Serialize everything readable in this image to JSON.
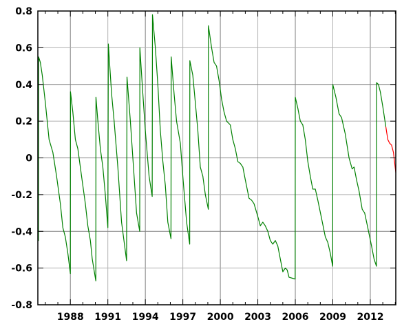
{
  "chart_data": {
    "type": "line",
    "title": "",
    "xlabel": "",
    "ylabel": "",
    "xlim": [
      1985.4,
      2014.04
    ],
    "ylim": [
      -0.8,
      0.8
    ],
    "grid": true,
    "xticks": [
      1988,
      1991,
      1994,
      1997,
      2000,
      2003,
      2006,
      2009,
      2012
    ],
    "xtick_labels": [
      "1988",
      "1991",
      "1994",
      "1997",
      "2000",
      "2003",
      "2006",
      "2009",
      "2012"
    ],
    "yticks": [
      0.8,
      0.6,
      0.4,
      0.2,
      0,
      -0.2,
      -0.4,
      -0.6,
      -0.8
    ],
    "ytick_labels": [
      "0.8",
      "0.6",
      "0.4",
      "0.2",
      "0",
      "-0.2",
      "-0.4",
      "-0.6",
      "-0.8"
    ],
    "series": [
      {
        "color": "#008000",
        "points": [
          [
            1985.4,
            -0.38
          ],
          [
            1985.45,
            -0.45
          ],
          [
            1985.46,
            0.55
          ],
          [
            1985.6,
            0.52
          ],
          [
            1985.75,
            0.45
          ],
          [
            1986.0,
            0.3
          ],
          [
            1986.3,
            0.1
          ],
          [
            1986.6,
            0.03
          ],
          [
            1986.9,
            -0.1
          ],
          [
            1987.2,
            -0.25
          ],
          [
            1987.4,
            -0.38
          ],
          [
            1987.6,
            -0.43
          ],
          [
            1987.8,
            -0.52
          ],
          [
            1988.0,
            -0.63
          ],
          [
            1988.01,
            0.36
          ],
          [
            1988.2,
            0.25
          ],
          [
            1988.4,
            0.1
          ],
          [
            1988.6,
            0.05
          ],
          [
            1988.9,
            -0.1
          ],
          [
            1989.2,
            -0.25
          ],
          [
            1989.4,
            -0.37
          ],
          [
            1989.6,
            -0.45
          ],
          [
            1989.75,
            -0.55
          ],
          [
            1990.04,
            -0.67
          ],
          [
            1990.05,
            0.33
          ],
          [
            1990.2,
            0.2
          ],
          [
            1990.4,
            0.05
          ],
          [
            1990.6,
            -0.05
          ],
          [
            1990.8,
            -0.2
          ],
          [
            1991.0,
            -0.38
          ],
          [
            1991.04,
            0.62
          ],
          [
            1991.3,
            0.35
          ],
          [
            1991.5,
            0.2
          ],
          [
            1991.8,
            -0.05
          ],
          [
            1992.1,
            -0.35
          ],
          [
            1992.5,
            -0.56
          ],
          [
            1992.53,
            0.44
          ],
          [
            1992.8,
            0.2
          ],
          [
            1993.0,
            0.0
          ],
          [
            1993.3,
            -0.3
          ],
          [
            1993.55,
            -0.4
          ],
          [
            1993.56,
            0.6
          ],
          [
            1993.8,
            0.35
          ],
          [
            1994.0,
            0.15
          ],
          [
            1994.3,
            -0.1
          ],
          [
            1994.55,
            -0.21
          ],
          [
            1994.57,
            0.78
          ],
          [
            1994.8,
            0.6
          ],
          [
            1995.0,
            0.4
          ],
          [
            1995.2,
            0.15
          ],
          [
            1995.4,
            -0.02
          ],
          [
            1995.6,
            -0.15
          ],
          [
            1995.8,
            -0.35
          ],
          [
            1996.05,
            -0.44
          ],
          [
            1996.07,
            0.55
          ],
          [
            1996.3,
            0.35
          ],
          [
            1996.5,
            0.2
          ],
          [
            1996.8,
            0.08
          ],
          [
            1997.0,
            -0.1
          ],
          [
            1997.3,
            -0.35
          ],
          [
            1997.55,
            -0.47
          ],
          [
            1997.56,
            0.53
          ],
          [
            1997.8,
            0.45
          ],
          [
            1998.0,
            0.3
          ],
          [
            1998.2,
            0.15
          ],
          [
            1998.4,
            -0.05
          ],
          [
            1998.6,
            -0.1
          ],
          [
            1998.8,
            -0.2
          ],
          [
            1999.04,
            -0.28
          ],
          [
            1999.05,
            0.72
          ],
          [
            1999.3,
            0.6
          ],
          [
            1999.5,
            0.52
          ],
          [
            1999.7,
            0.5
          ],
          [
            1999.9,
            0.42
          ],
          [
            2000.1,
            0.32
          ],
          [
            2000.3,
            0.25
          ],
          [
            2000.5,
            0.2
          ],
          [
            2000.8,
            0.18
          ],
          [
            2001.0,
            0.1
          ],
          [
            2001.2,
            0.05
          ],
          [
            2001.4,
            -0.02
          ],
          [
            2001.6,
            -0.03
          ],
          [
            2001.8,
            -0.05
          ],
          [
            2002.0,
            -0.12
          ],
          [
            2002.3,
            -0.22
          ],
          [
            2002.5,
            -0.23
          ],
          [
            2002.7,
            -0.25
          ],
          [
            2003.0,
            -0.32
          ],
          [
            2003.2,
            -0.37
          ],
          [
            2003.4,
            -0.35
          ],
          [
            2003.6,
            -0.37
          ],
          [
            2003.8,
            -0.4
          ],
          [
            2004.0,
            -0.45
          ],
          [
            2004.2,
            -0.47
          ],
          [
            2004.4,
            -0.45
          ],
          [
            2004.6,
            -0.48
          ],
          [
            2004.8,
            -0.55
          ],
          [
            2005.0,
            -0.62
          ],
          [
            2005.2,
            -0.6
          ],
          [
            2005.35,
            -0.61
          ],
          [
            2005.5,
            -0.65
          ],
          [
            2005.99,
            -0.66
          ],
          [
            2006.0,
            0.33
          ],
          [
            2006.2,
            0.27
          ],
          [
            2006.4,
            0.2
          ],
          [
            2006.6,
            0.18
          ],
          [
            2006.8,
            0.1
          ],
          [
            2007.0,
            -0.02
          ],
          [
            2007.2,
            -0.1
          ],
          [
            2007.4,
            -0.17
          ],
          [
            2007.6,
            -0.17
          ],
          [
            2007.8,
            -0.23
          ],
          [
            2008.1,
            -0.33
          ],
          [
            2008.4,
            -0.43
          ],
          [
            2008.6,
            -0.46
          ],
          [
            2008.8,
            -0.52
          ],
          [
            2008.99,
            -0.59
          ],
          [
            2009.0,
            0.4
          ],
          [
            2009.25,
            0.33
          ],
          [
            2009.5,
            0.24
          ],
          [
            2009.7,
            0.22
          ],
          [
            2010.0,
            0.13
          ],
          [
            2010.3,
            0.0
          ],
          [
            2010.55,
            -0.06
          ],
          [
            2010.7,
            -0.05
          ],
          [
            2010.9,
            -0.12
          ],
          [
            2011.1,
            -0.18
          ],
          [
            2011.35,
            -0.28
          ],
          [
            2011.55,
            -0.3
          ],
          [
            2011.8,
            -0.38
          ],
          [
            2012.1,
            -0.48
          ],
          [
            2012.3,
            -0.55
          ],
          [
            2012.49,
            -0.59
          ],
          [
            2012.5,
            0.41
          ],
          [
            2012.65,
            0.4
          ],
          [
            2012.8,
            0.36
          ],
          [
            2013.0,
            0.28
          ],
          [
            2013.24,
            0.17
          ]
        ]
      },
      {
        "color": "#ff0000",
        "points": [
          [
            2013.24,
            0.17
          ],
          [
            2013.4,
            0.1
          ],
          [
            2013.55,
            0.08
          ],
          [
            2013.7,
            0.07
          ],
          [
            2013.85,
            0.03
          ],
          [
            2014.04,
            -0.08
          ]
        ]
      }
    ]
  }
}
